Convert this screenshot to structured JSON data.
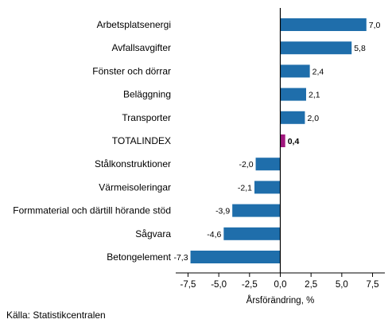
{
  "chart_data": {
    "type": "bar",
    "orientation": "horizontal",
    "categories": [
      "Arbetsplatsenergi",
      "Avfallsavgifter",
      "Fönster och dörrar",
      "Beläggning",
      "Transporter",
      "TOTALINDEX",
      "Stålkonstruktioner",
      "Värmeisoleringar",
      "Formmaterial och därtill hörande stöd",
      "Sågvara",
      "Betongelement"
    ],
    "values": [
      7.0,
      5.8,
      2.4,
      2.1,
      2.0,
      0.4,
      -2.0,
      -2.1,
      -3.9,
      -4.6,
      -7.3
    ],
    "value_labels": [
      "7,0",
      "5,8",
      "2,4",
      "2,1",
      "2,0",
      "0,4",
      "-2,0",
      "-2,1",
      "-3,9",
      "-4,6",
      "-7,3"
    ],
    "highlight_category": "TOTALINDEX",
    "xlabel": "Årsförändring, %",
    "xlim": [
      -8.5,
      8.5
    ],
    "xticks": [
      -7.5,
      -5.0,
      -2.5,
      0.0,
      2.5,
      5.0,
      7.5
    ],
    "xtick_labels": [
      "-7,5",
      "-5,0",
      "-2,5",
      "0,0",
      "2,5",
      "5,0",
      "7,5"
    ],
    "grid": false,
    "colors": {
      "bar": "#1f6eab",
      "highlight": "#a0177e",
      "axis": "#000000"
    }
  },
  "source": "Källa: Statistikcentralen"
}
